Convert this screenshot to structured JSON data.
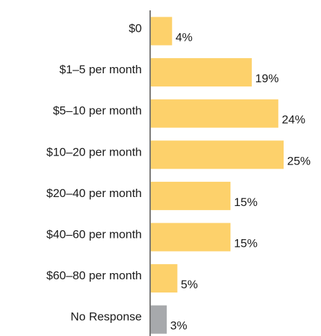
{
  "chart_data": {
    "type": "bar",
    "orientation": "horizontal",
    "categories": [
      "$0",
      "$1–5 per month",
      "$5–10 per month",
      "$10–20 per month",
      "$20–40 per month",
      "$40–60 per month",
      "$60–80 per month",
      "No Response"
    ],
    "values": [
      4,
      19,
      24,
      25,
      15,
      15,
      5,
      3
    ],
    "value_labels": [
      "4%",
      "19%",
      "24%",
      "25%",
      "15%",
      "15%",
      "5%",
      "3%"
    ],
    "colors": [
      "#fdd16b",
      "#fdd16b",
      "#fdd16b",
      "#fdd16b",
      "#fdd16b",
      "#fdd16b",
      "#fdd16b",
      "#a7a9ac"
    ]
  }
}
